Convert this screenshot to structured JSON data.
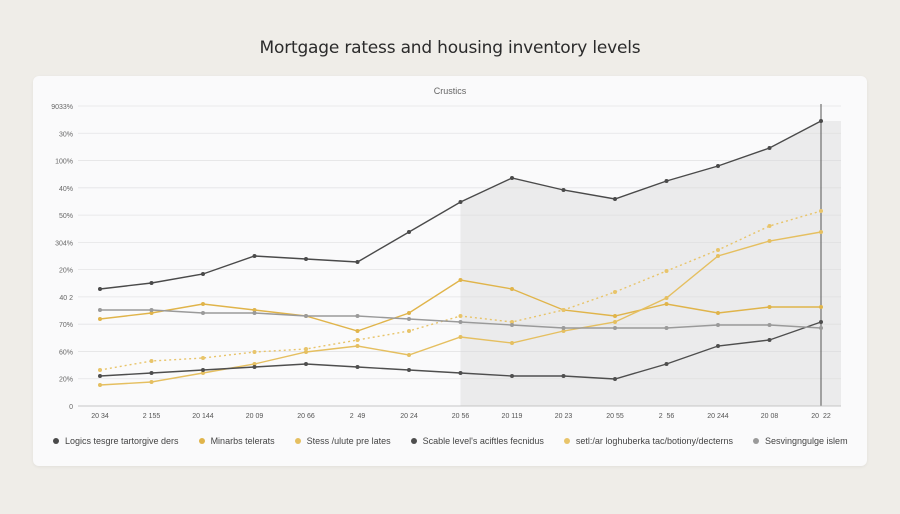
{
  "page": {
    "title": "Mortgage ratess and housing inventory levels"
  },
  "chart_data": {
    "type": "line",
    "subtitle": "Crustics",
    "x": [
      "20 34",
      "2 155",
      "20 144",
      "20 09",
      "20 66",
      "2  49",
      "20 24",
      "20 56",
      "20 119",
      "20 23",
      "20 55",
      "2  56",
      "20 244",
      "20 08",
      "20  22"
    ],
    "y_ticks": [
      "9033%",
      "30%",
      "100%",
      "40%",
      "50%",
      "304%",
      "20%",
      "40 2",
      "70%",
      "60%",
      "20%",
      "0"
    ],
    "ylim": [
      0,
      100
    ],
    "grid": true,
    "legend": "bottom",
    "series": [
      {
        "name": "Logics tesgre tartorgive ders",
        "color": "#4a4a4a",
        "style": "solid",
        "values": [
          39,
          41,
          44,
          50,
          49,
          48,
          58,
          68,
          76,
          72,
          69,
          75,
          80,
          86,
          95
        ]
      },
      {
        "name": "Minarbs telerats",
        "color": "#e0b44a",
        "style": "solid",
        "values": [
          29,
          31,
          34,
          32,
          30,
          25,
          31,
          42,
          39,
          32,
          30,
          34,
          31,
          33,
          33
        ]
      },
      {
        "name": "Stess /ulute pre lates",
        "color": "#e5bf60",
        "style": "solid",
        "values": [
          7,
          8,
          11,
          14,
          18,
          20,
          17,
          23,
          21,
          25,
          28,
          36,
          50,
          55,
          58
        ]
      },
      {
        "name": "Scable level's aciftles fecnidus",
        "color": "#4e4e4e",
        "style": "solid",
        "values": [
          10,
          11,
          12,
          13,
          14,
          13,
          12,
          11,
          10,
          10,
          9,
          14,
          20,
          22,
          28
        ]
      },
      {
        "name": "setl:/ar loghuberka tac/botiony/decterns",
        "color": "#e8c46a",
        "style": "dotted",
        "values": [
          12,
          15,
          16,
          18,
          19,
          22,
          25,
          30,
          28,
          32,
          38,
          45,
          52,
          60,
          65
        ]
      },
      {
        "name": "Sesvingngulge islem",
        "color": "#9a9a9a",
        "style": "solid",
        "values": [
          32,
          32,
          31,
          31,
          30,
          30,
          29,
          28,
          27,
          26,
          26,
          26,
          27,
          27,
          26
        ]
      }
    ]
  }
}
